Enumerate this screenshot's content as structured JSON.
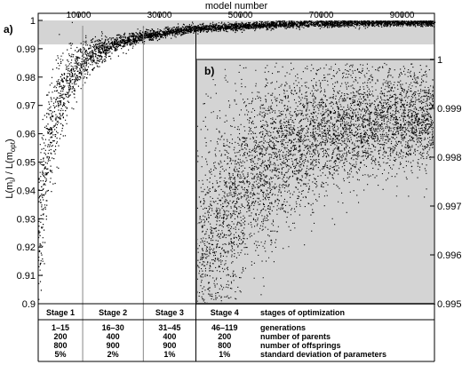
{
  "chart_data": {
    "type": "scatter",
    "top_axis_label": "model number",
    "x_ticks": [
      "10000",
      "30000",
      "50000",
      "70000",
      "90000"
    ],
    "xlim": [
      0,
      98000
    ],
    "ylabel_parts": {
      "main": "L(m",
      "sub": "i",
      "mid": ") / L(m",
      "sub2": "opt",
      "end": ")"
    },
    "left_ylim": [
      0.9,
      1.0
    ],
    "left_ticks": [
      "0.9",
      "0.91",
      "0.92",
      "0.93",
      "0.94",
      "0.95",
      "0.96",
      "0.97",
      "0.98",
      "0.99",
      "1"
    ],
    "inset_ylim": [
      0.995,
      1.0
    ],
    "inset_ticks": [
      "0.995",
      "0.996",
      "0.997",
      "0.998",
      "0.999",
      "1"
    ],
    "panel_a_label": "a)",
    "panel_b_label": "b)",
    "stage_boundaries": [
      11000,
      26000,
      39000
    ],
    "series_description_curve": {
      "x": [
        0,
        2000,
        5000,
        8000,
        11000,
        15000,
        20000,
        26000,
        32000,
        39000,
        50000,
        60000,
        70000,
        80000,
        98000
      ],
      "y_center": [
        0.925,
        0.955,
        0.972,
        0.981,
        0.986,
        0.9895,
        0.9925,
        0.9945,
        0.996,
        0.9972,
        0.9982,
        0.9987,
        0.999,
        0.9992,
        0.9994
      ]
    }
  },
  "table": {
    "stages": [
      {
        "title": "Stage 1",
        "generations": "1–15",
        "parents": "200",
        "offsprings": "800",
        "std": "5%"
      },
      {
        "title": "Stage 2",
        "generations": "16–30",
        "parents": "400",
        "offsprings": "900",
        "std": "2%"
      },
      {
        "title": "Stage 3",
        "generations": "31–45",
        "parents": "400",
        "offsprings": "900",
        "std": "1%"
      },
      {
        "title": "Stage 4",
        "generations": "46–119",
        "parents": "200",
        "offsprings": "800",
        "std": "1%"
      }
    ],
    "row_labels": {
      "header": "stages of optimization",
      "generations": "generations",
      "parents": "number of  parents",
      "offsprings": "number of offsprings",
      "std": "standard deviation of parameters"
    }
  }
}
